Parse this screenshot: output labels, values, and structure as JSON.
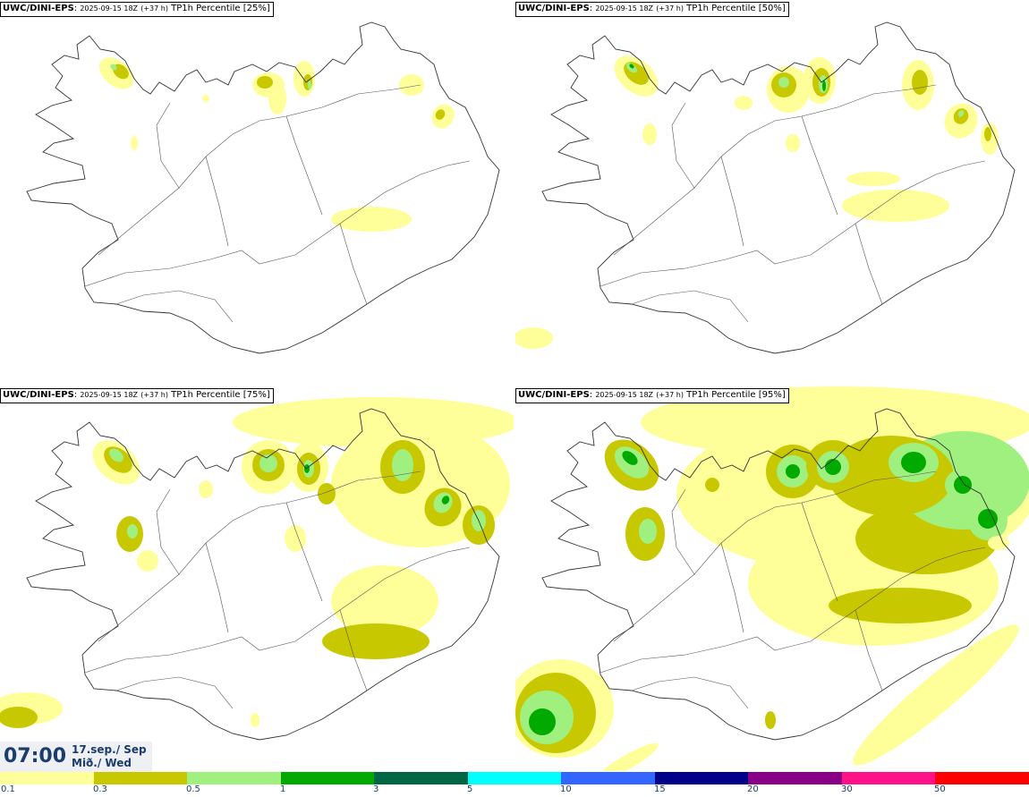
{
  "panels": [
    {
      "model": "UWC/DINI-EPS",
      "run": "2025-09-15 18Z",
      "lead": "(+37 h)",
      "field": "TP1h Percentile",
      "pct": "[25%]"
    },
    {
      "model": "UWC/DINI-EPS",
      "run": "2025-09-15 18Z",
      "lead": "(+37 h)",
      "field": "TP1h Percentile",
      "pct": "[50%]"
    },
    {
      "model": "UWC/DINI-EPS",
      "run": "2025-09-15 18Z",
      "lead": "(+37 h)",
      "field": "TP1h Percentile",
      "pct": "[75%]"
    },
    {
      "model": "UWC/DINI-EPS",
      "run": "2025-09-15 18Z",
      "lead": "(+37 h)",
      "field": "TP1h Percentile",
      "pct": "[95%]"
    }
  ],
  "valid": {
    "time": "07:00",
    "date_line1": "17.sep./ Sep",
    "date_line2": "Mið./ Wed"
  },
  "colorbar": {
    "colors": [
      "#ffff99",
      "#c8c800",
      "#a0f080",
      "#00aa00",
      "#006644",
      "#00ffff",
      "#3366ff",
      "#000088",
      "#880088",
      "#ff1188",
      "#ff0000"
    ],
    "labels": [
      "0.1",
      "0.3",
      "0.5",
      "1",
      "3",
      "5",
      "10",
      "15",
      "20",
      "30",
      "50"
    ]
  }
}
